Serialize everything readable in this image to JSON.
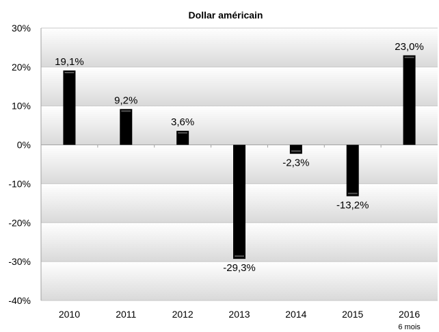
{
  "chart_data": {
    "type": "bar",
    "title": "Dollar américain",
    "xlabel": "",
    "ylabel": "",
    "categories": [
      "2010",
      "2011",
      "2012",
      "2013",
      "2014",
      "2015",
      "2016"
    ],
    "category_sublabels": [
      "",
      "",
      "",
      "",
      "",
      "",
      "6 mois"
    ],
    "series": [
      {
        "values": [
          19.1,
          9.2,
          3.6,
          -29.3,
          -2.3,
          -13.2,
          23.0
        ],
        "data_labels": [
          "19,1%",
          "9,2%",
          "3,6%",
          "-29,3%",
          "-2,3%",
          "-13,2%",
          "23,0%"
        ],
        "color": "#000000"
      }
    ],
    "ylim": [
      -40,
      30
    ],
    "yticks": [
      30,
      20,
      10,
      0,
      -10,
      -20,
      -30,
      -40
    ],
    "ytick_labels": [
      "30%",
      "20%",
      "10%",
      "0%",
      "-10%",
      "-20%",
      "-30%",
      "-40%"
    ],
    "grid": true,
    "legend": "none",
    "background_gradient": [
      "#ffffff",
      "#d9d9d9"
    ]
  }
}
